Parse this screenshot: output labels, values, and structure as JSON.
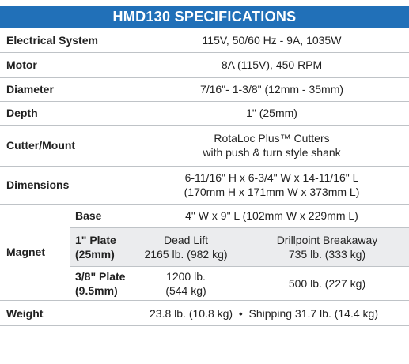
{
  "title": "HMD130 SPECIFICATIONS",
  "rows": [
    {
      "label": "Electrical System",
      "value": [
        "115V, 50/60 Hz - 9A, 1035W"
      ]
    },
    {
      "label": "Motor",
      "value": [
        "8A (115V), 450 RPM"
      ]
    },
    {
      "label": "Diameter",
      "value": [
        "7/16\"- 1-3/8\" (12mm - 35mm)"
      ]
    },
    {
      "label": "Depth",
      "value": [
        "1\" (25mm)"
      ]
    },
    {
      "label": "Cutter/Mount",
      "value": [
        "RotaLoc Plus™ Cutters",
        "with push & turn style shank"
      ]
    },
    {
      "label": "Dimensions",
      "value": [
        "6-11/16\" H x 6-3/4\" W x 14-11/16\" L",
        "(170mm H x 171mm W x 373mm L)"
      ]
    }
  ],
  "magnet": {
    "label": "Magnet",
    "base": {
      "label": "Base",
      "value": "4\" W x 9\" L (102mm W x 229mm L)"
    },
    "plates": [
      {
        "label": [
          "1\" Plate",
          "(25mm)"
        ],
        "dead_lift": [
          "Dead Lift",
          "2165 lb. (982 kg)"
        ],
        "breakaway": [
          "Drillpoint Breakaway",
          "735 lb. (333 kg)"
        ]
      },
      {
        "label": [
          "3/8\" Plate",
          "(9.5mm)"
        ],
        "dead_lift": [
          "1200 lb.",
          "(544 kg)"
        ],
        "breakaway": [
          "500 lb. (227 kg)"
        ]
      }
    ]
  },
  "weight": {
    "label": "Weight",
    "value": "23.8 lb. (10.8 kg)  •  Shipping 31.7 lb. (14.4 kg)"
  }
}
